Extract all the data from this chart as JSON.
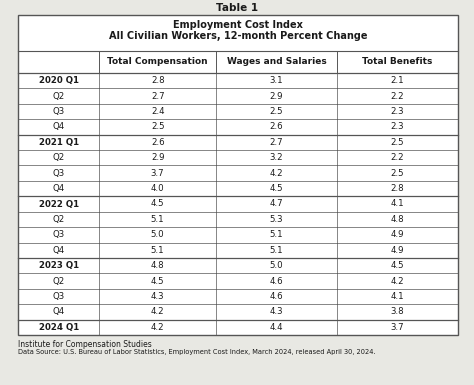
{
  "title_above": "Table 1",
  "header_line1": "Employment Cost Index",
  "header_line2": "All Civilian Workers, 12-month Percent Change",
  "col_headers": [
    "",
    "Total Compensation",
    "Wages and Salaries",
    "Total Benefits"
  ],
  "rows": [
    [
      "2020 Q1",
      "2.8",
      "3.1",
      "2.1"
    ],
    [
      "Q2",
      "2.7",
      "2.9",
      "2.2"
    ],
    [
      "Q3",
      "2.4",
      "2.5",
      "2.3"
    ],
    [
      "Q4",
      "2.5",
      "2.6",
      "2.3"
    ],
    [
      "2021 Q1",
      "2.6",
      "2.7",
      "2.5"
    ],
    [
      "Q2",
      "2.9",
      "3.2",
      "2.2"
    ],
    [
      "Q3",
      "3.7",
      "4.2",
      "2.5"
    ],
    [
      "Q4",
      "4.0",
      "4.5",
      "2.8"
    ],
    [
      "2022 Q1",
      "4.5",
      "4.7",
      "4.1"
    ],
    [
      "Q2",
      "5.1",
      "5.3",
      "4.8"
    ],
    [
      "Q3",
      "5.0",
      "5.1",
      "4.9"
    ],
    [
      "Q4",
      "5.1",
      "5.1",
      "4.9"
    ],
    [
      "2023 Q1",
      "4.8",
      "5.0",
      "4.5"
    ],
    [
      "Q2",
      "4.5",
      "4.6",
      "4.2"
    ],
    [
      "Q3",
      "4.3",
      "4.6",
      "4.1"
    ],
    [
      "Q4",
      "4.2",
      "4.3",
      "3.8"
    ],
    [
      "2024 Q1",
      "4.2",
      "4.4",
      "3.7"
    ]
  ],
  "year_rows": [
    0,
    4,
    8,
    12,
    16
  ],
  "footer_line1": "Institute for Compensation Studies",
  "footer_line2": "Data Source: U.S. Bureau of Labor Statistics, Employment Cost Index, March 2024, released April 30, 2024.",
  "bg_color": "#e8e8e3",
  "table_bg": "#ffffff",
  "border_color": "#555555",
  "text_color": "#1a1a1a",
  "title_fontsize": 7.5,
  "header_fontsize": 7.0,
  "col_header_fontsize": 6.5,
  "data_fontsize": 6.2,
  "footer_fontsize1": 5.5,
  "footer_fontsize2": 4.8
}
